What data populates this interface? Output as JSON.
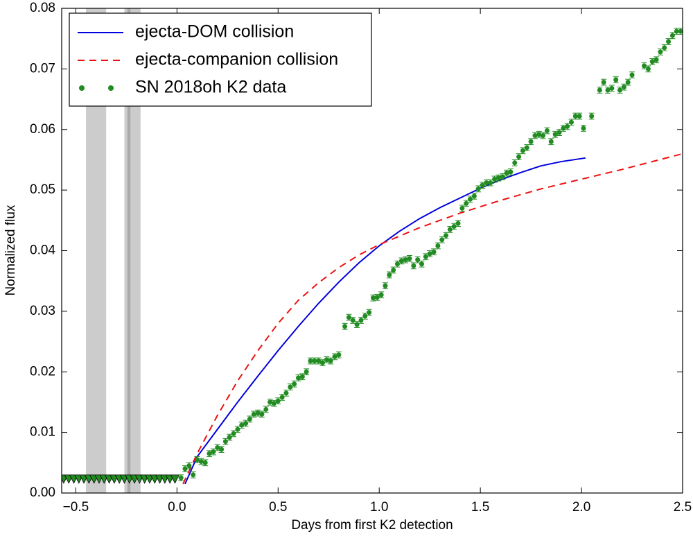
{
  "chart_data": {
    "type": "line",
    "xlabel": "Days from first K2 detection",
    "ylabel": "Normalized flux",
    "xlim": [
      -0.57,
      2.5
    ],
    "ylim": [
      0,
      0.08
    ],
    "xticks": [
      {
        "value": -0.5,
        "label": "−0.5"
      },
      {
        "value": 0,
        "label": "0.0"
      },
      {
        "value": 0.5,
        "label": "0.5"
      },
      {
        "value": 1,
        "label": "1.0"
      },
      {
        "value": 1.5,
        "label": "1.5"
      },
      {
        "value": 2,
        "label": "2.0"
      },
      {
        "value": 2.5,
        "label": "2.5"
      }
    ],
    "yticks": [
      {
        "value": 0,
        "label": "0.00"
      },
      {
        "value": 0.01,
        "label": "0.01"
      },
      {
        "value": 0.02,
        "label": "0.02"
      },
      {
        "value": 0.03,
        "label": "0.03"
      },
      {
        "value": 0.04,
        "label": "0.04"
      },
      {
        "value": 0.05,
        "label": "0.05"
      },
      {
        "value": 0.06,
        "label": "0.06"
      },
      {
        "value": 0.07,
        "label": "0.07"
      },
      {
        "value": 0.08,
        "label": "0.08"
      }
    ],
    "legend": "upper left",
    "shaded_regions": [
      {
        "x": [
          -0.45,
          -0.35
        ],
        "color": "#cccccc"
      },
      {
        "x": [
          -0.26,
          -0.18
        ],
        "color": "#cccccc"
      },
      {
        "x": [
          -0.245,
          -0.23
        ],
        "color": "#aaaaaa"
      }
    ],
    "upper_limits": {
      "color": "#228b22",
      "y": 0.0023,
      "x": [
        -0.56,
        -0.535,
        -0.51,
        -0.485,
        -0.46,
        -0.435,
        -0.41,
        -0.385,
        -0.36,
        -0.335,
        -0.31,
        -0.285,
        -0.26,
        -0.235,
        -0.21,
        -0.185,
        -0.16,
        -0.135,
        -0.11,
        -0.085,
        -0.06,
        -0.035,
        -0.01
      ]
    },
    "series": [
      {
        "name": "ejecta-DOM collision",
        "kind": "line",
        "dashed": false,
        "color": "#0000dd",
        "x": [
          0.04,
          0.1,
          0.2,
          0.3,
          0.4,
          0.5,
          0.6,
          0.7,
          0.8,
          0.9,
          1.0,
          1.1,
          1.2,
          1.3,
          1.4,
          1.5,
          1.6,
          1.7,
          1.8,
          1.9,
          2.02
        ],
        "values": [
          0.0015,
          0.006,
          0.0105,
          0.015,
          0.0193,
          0.0235,
          0.0275,
          0.0313,
          0.0348,
          0.038,
          0.0408,
          0.0432,
          0.0453,
          0.0471,
          0.0487,
          0.0503,
          0.0517,
          0.0529,
          0.054,
          0.0547,
          0.0553
        ]
      },
      {
        "name": "ejecta-companion collision",
        "kind": "line",
        "dashed": true,
        "color": "#ee1111",
        "x": [
          0.03,
          0.1,
          0.2,
          0.3,
          0.4,
          0.5,
          0.6,
          0.7,
          0.8,
          0.9,
          1.0,
          1.2,
          1.4,
          1.6,
          1.8,
          2.0,
          2.2,
          2.5
        ],
        "values": [
          0.0015,
          0.0065,
          0.0128,
          0.0185,
          0.0235,
          0.028,
          0.0318,
          0.0347,
          0.0372,
          0.0393,
          0.041,
          0.0438,
          0.0462,
          0.0483,
          0.0502,
          0.0518,
          0.0534,
          0.056
        ]
      },
      {
        "name": "SN 2018oh K2 data",
        "kind": "scatter",
        "color": "#228b22",
        "yerr": 0.0005,
        "x": [
          0.02,
          0.04,
          0.06,
          0.08,
          0.1,
          0.12,
          0.14,
          0.16,
          0.18,
          0.2,
          0.22,
          0.24,
          0.26,
          0.28,
          0.3,
          0.32,
          0.34,
          0.36,
          0.38,
          0.4,
          0.42,
          0.44,
          0.46,
          0.48,
          0.5,
          0.52,
          0.54,
          0.56,
          0.58,
          0.6,
          0.62,
          0.64,
          0.66,
          0.68,
          0.7,
          0.72,
          0.74,
          0.76,
          0.78,
          0.8,
          0.83,
          0.85,
          0.87,
          0.89,
          0.91,
          0.93,
          0.95,
          0.97,
          0.99,
          1.01,
          1.03,
          1.05,
          1.07,
          1.09,
          1.11,
          1.13,
          1.15,
          1.17,
          1.19,
          1.21,
          1.23,
          1.25,
          1.27,
          1.29,
          1.31,
          1.33,
          1.35,
          1.37,
          1.39,
          1.41,
          1.43,
          1.45,
          1.47,
          1.49,
          1.51,
          1.53,
          1.55,
          1.57,
          1.59,
          1.61,
          1.63,
          1.65,
          1.67,
          1.69,
          1.71,
          1.73,
          1.75,
          1.77,
          1.79,
          1.81,
          1.83,
          1.85,
          1.87,
          1.89,
          1.91,
          1.93,
          1.95,
          1.97,
          1.99,
          2.01,
          2.05,
          2.09,
          2.11,
          2.13,
          2.15,
          2.17,
          2.19,
          2.21,
          2.23,
          2.25,
          2.31,
          2.33,
          2.35,
          2.37,
          2.39,
          2.41,
          2.43,
          2.45,
          2.47,
          2.49
        ],
        "values": [
          0.0025,
          0.004,
          0.0045,
          0.003,
          0.0055,
          0.0052,
          0.005,
          0.0065,
          0.0068,
          0.0075,
          0.0072,
          0.0085,
          0.0092,
          0.0098,
          0.0105,
          0.0112,
          0.0115,
          0.0122,
          0.013,
          0.0132,
          0.013,
          0.0138,
          0.015,
          0.0148,
          0.0152,
          0.0158,
          0.0165,
          0.0175,
          0.018,
          0.019,
          0.0192,
          0.02,
          0.0218,
          0.0218,
          0.0218,
          0.0215,
          0.022,
          0.0218,
          0.0225,
          0.0228,
          0.0275,
          0.029,
          0.0285,
          0.0278,
          0.0285,
          0.0292,
          0.0298,
          0.0322,
          0.0323,
          0.0327,
          0.0342,
          0.036,
          0.0368,
          0.0378,
          0.0383,
          0.0385,
          0.0387,
          0.0375,
          0.0385,
          0.0378,
          0.039,
          0.0395,
          0.0398,
          0.0408,
          0.0418,
          0.0425,
          0.0435,
          0.044,
          0.0445,
          0.047,
          0.0478,
          0.0485,
          0.049,
          0.0502,
          0.0508,
          0.0512,
          0.0512,
          0.0518,
          0.052,
          0.0522,
          0.0528,
          0.053,
          0.0545,
          0.0555,
          0.0565,
          0.057,
          0.058,
          0.059,
          0.0592,
          0.059,
          0.0598,
          0.058,
          0.0592,
          0.0595,
          0.0602,
          0.0605,
          0.0612,
          0.0622,
          0.0622,
          0.0602,
          0.0622,
          0.0665,
          0.0678,
          0.0665,
          0.0668,
          0.0682,
          0.0665,
          0.067,
          0.0678,
          0.069,
          0.0705,
          0.07,
          0.0712,
          0.0715,
          0.0728,
          0.0735,
          0.0745,
          0.0755,
          0.0762,
          0.0762
        ]
      }
    ]
  }
}
